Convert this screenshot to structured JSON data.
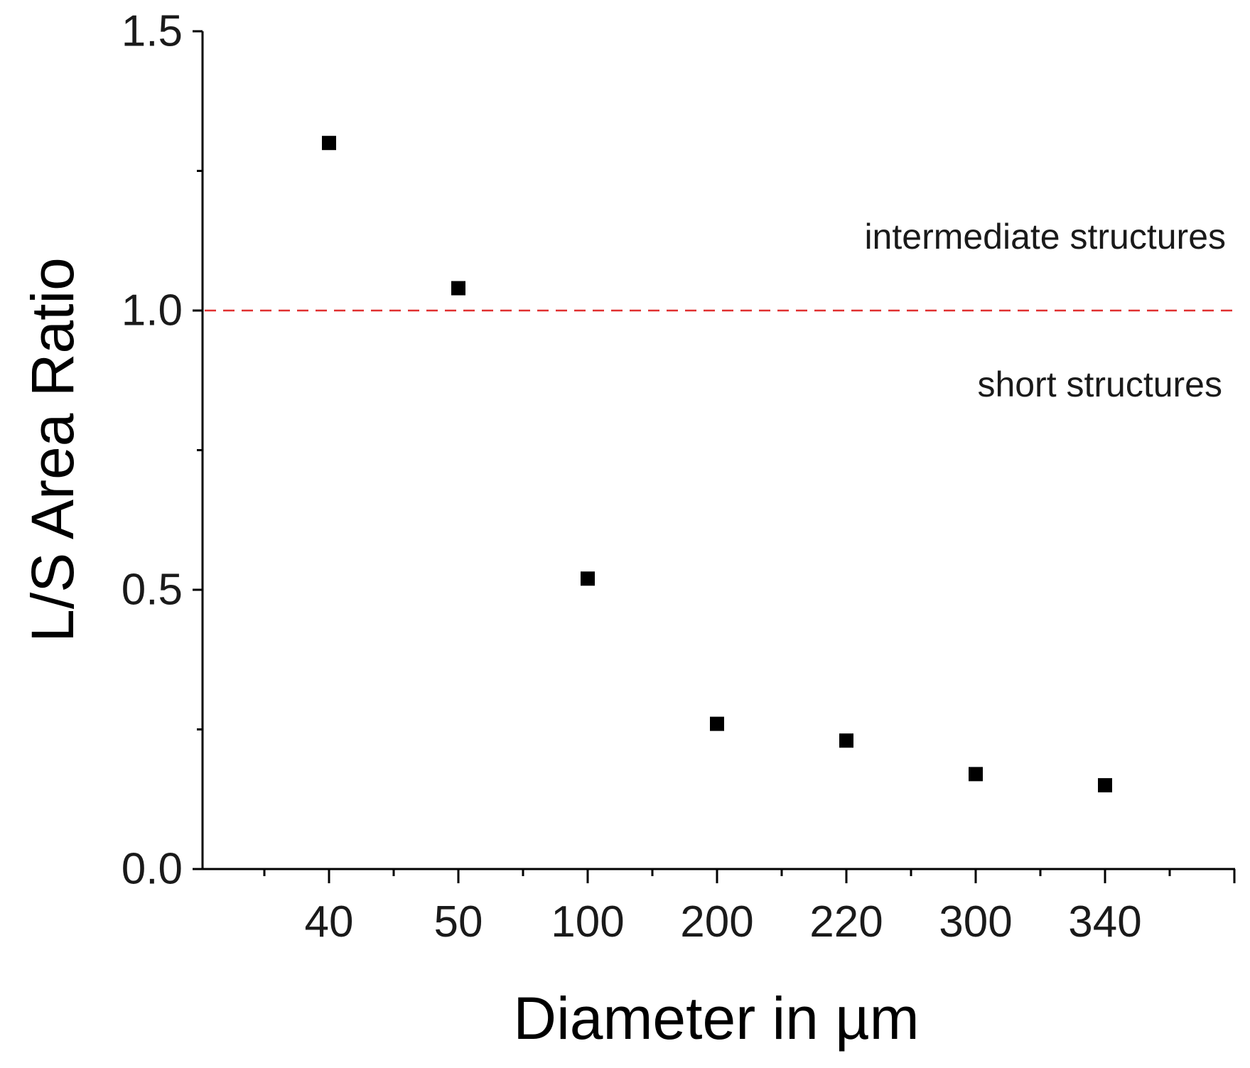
{
  "chart_data": {
    "type": "scatter",
    "xlabel": "Diameter in µm",
    "ylabel": "L/S Area Ratio",
    "ylim": [
      0,
      1.5
    ],
    "yticks_major": [
      "0.0",
      "0.5",
      "1.0",
      "1.5"
    ],
    "yticks_minor": [
      0.25,
      0.75,
      1.25
    ],
    "categories": [
      "40",
      "50",
      "100",
      "200",
      "220",
      "300",
      "340"
    ],
    "values": [
      1.3,
      1.04,
      0.52,
      0.26,
      0.23,
      0.17,
      0.15
    ],
    "marker": "square",
    "marker_color": "#000000",
    "grid": false,
    "reference_line": {
      "y": 1.0,
      "style": "dashed",
      "color": "#e03030"
    },
    "annotations": {
      "above": "intermediate structures",
      "below": "short structures"
    }
  }
}
